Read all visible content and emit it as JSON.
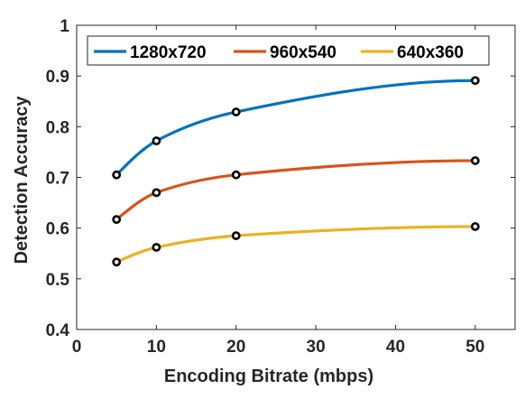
{
  "chart_data": {
    "type": "line",
    "xlabel": "Encoding Bitrate (mbps)",
    "ylabel": "Detection Accuracy",
    "xlim": [
      0,
      55
    ],
    "ylim": [
      0.4,
      1
    ],
    "xticks": [
      0,
      10,
      20,
      30,
      40,
      50
    ],
    "xtick_labels": [
      "0",
      "10",
      "20",
      "30",
      "40",
      "50"
    ],
    "yticks": [
      0.4,
      0.5,
      0.6,
      0.7,
      0.8,
      0.9,
      1
    ],
    "ytick_labels": [
      "0.4",
      "0.5",
      "0.6",
      "0.7",
      "0.8",
      "0.9",
      "1"
    ],
    "grid": false,
    "legend_position": "top",
    "x": [
      5,
      10,
      20,
      50
    ],
    "series": [
      {
        "name": "1280x720",
        "color": "#0072BD",
        "values": [
          0.705,
          0.772,
          0.829,
          0.891
        ]
      },
      {
        "name": "960x540",
        "color": "#D95319",
        "values": [
          0.617,
          0.67,
          0.705,
          0.733
        ]
      },
      {
        "name": "640x360",
        "color": "#EDB120",
        "values": [
          0.533,
          0.562,
          0.585,
          0.603
        ]
      }
    ]
  }
}
